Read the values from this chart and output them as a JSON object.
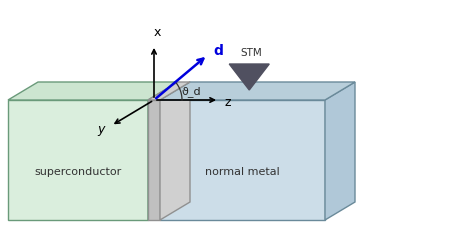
{
  "bg_color": "#ffffff",
  "sc_face_color": "#daeedd",
  "sc_top_color": "#cce5d0",
  "sc_edge_color": "#6a9a7a",
  "nm_face_color": "#ccdde8",
  "nm_top_color": "#b8ceda",
  "nm_right_color": "#b0c8d8",
  "nm_edge_color": "#6a8a9a",
  "barrier_face_color": "#c0c0c0",
  "barrier_top_color": "#d0d0d0",
  "barrier_edge_color": "#909090",
  "axis_color": "#000000",
  "d_vector_color": "#0000dd",
  "stm_color": "#505060",
  "x_label": "x",
  "y_label": "y",
  "z_label": "z",
  "d_label": "d",
  "theta_label": "ϑ_d",
  "stm_label": "STM",
  "sc_label": "superconductor",
  "nm_label": "normal metal",
  "fig_width": 4.74,
  "fig_height": 2.45,
  "dpi": 100
}
